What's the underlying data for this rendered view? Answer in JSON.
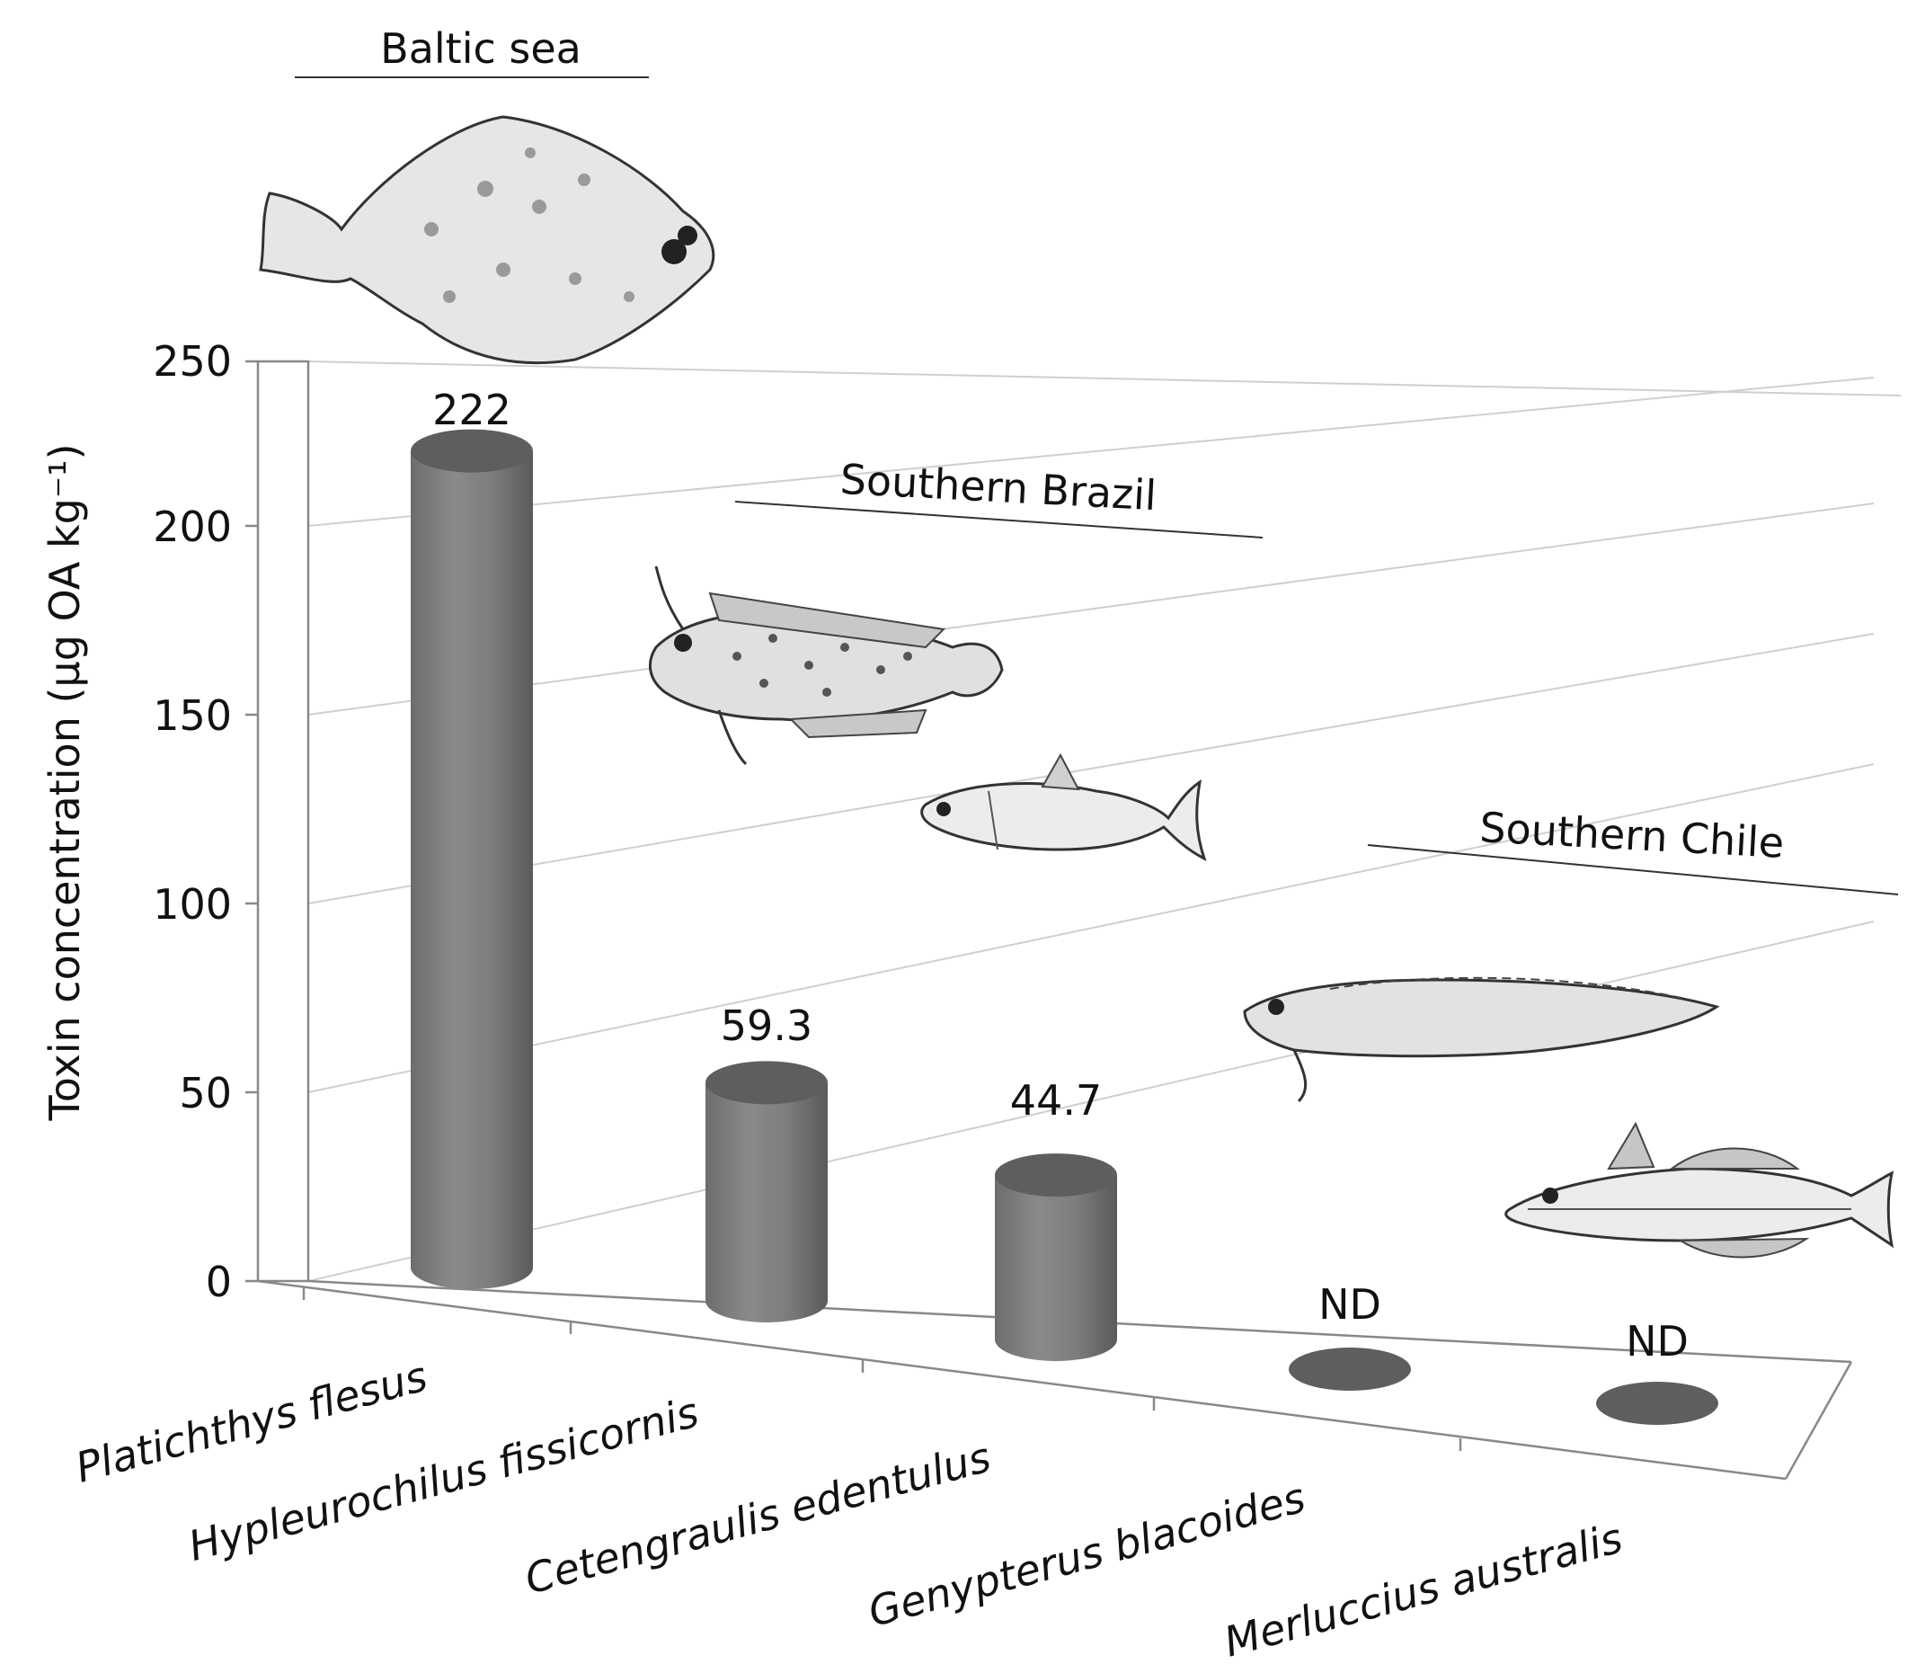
{
  "chart_data": {
    "type": "bar",
    "style": "3d-cylinder",
    "title": "",
    "ylabel": "Toxin concentration (µg OA kg⁻¹)",
    "xlabel": "",
    "ylim": [
      0,
      250
    ],
    "yticks": [
      "0",
      "50",
      "100",
      "150",
      "200",
      "250"
    ],
    "categories": [
      "Platichthys flesus",
      "Hypleurochilus fissicornis",
      "Cetengraulis edentulus",
      "Genypterus blacoides",
      "Merluccius australis"
    ],
    "values": [
      222,
      59.3,
      44.7,
      0,
      0
    ],
    "data_labels": [
      "222",
      "59.3",
      "44.7",
      "ND",
      "ND"
    ],
    "regions": [
      "Baltic sea",
      "Southern Brazil",
      "Southern Chile"
    ],
    "grid": true,
    "bar_color": "#7a7a7a"
  }
}
